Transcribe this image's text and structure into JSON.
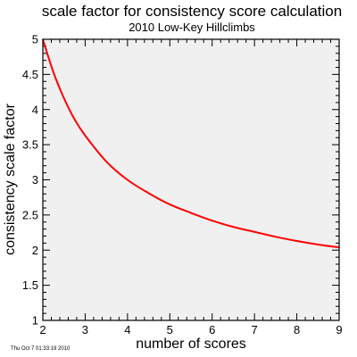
{
  "chart_data": {
    "type": "line",
    "title": "scale factor for consistency score calculation",
    "subtitle": "2010 Low-Key Hillclimbs",
    "xlabel": "number of scores",
    "ylabel": "consistency scale factor",
    "xlim": [
      2,
      9
    ],
    "ylim": [
      1,
      5
    ],
    "x_ticks": [
      "2",
      "3",
      "4",
      "5",
      "6",
      "7",
      "8",
      "9"
    ],
    "y_ticks": [
      "1",
      "1.5",
      "2",
      "2.5",
      "3",
      "3.5",
      "4",
      "4.5",
      "5"
    ],
    "grid": false,
    "series": [
      {
        "color": "#ff0000",
        "x": [
          2,
          2.25,
          2.5,
          2.75,
          3,
          3.5,
          4,
          4.5,
          5,
          5.5,
          6,
          6.5,
          7,
          7.5,
          8,
          8.5,
          9
        ],
        "y": [
          5,
          4.53,
          4.16,
          3.86,
          3.63,
          3.26,
          3.0,
          2.81,
          2.65,
          2.53,
          2.42,
          2.33,
          2.26,
          2.19,
          2.13,
          2.08,
          2.04
        ]
      }
    ],
    "footer_text": "Thu Oct  7 01:33:19 2010",
    "colors": {
      "plot_background": "#f0f0f0",
      "axes": "#000000",
      "line": "#ff0000"
    }
  }
}
